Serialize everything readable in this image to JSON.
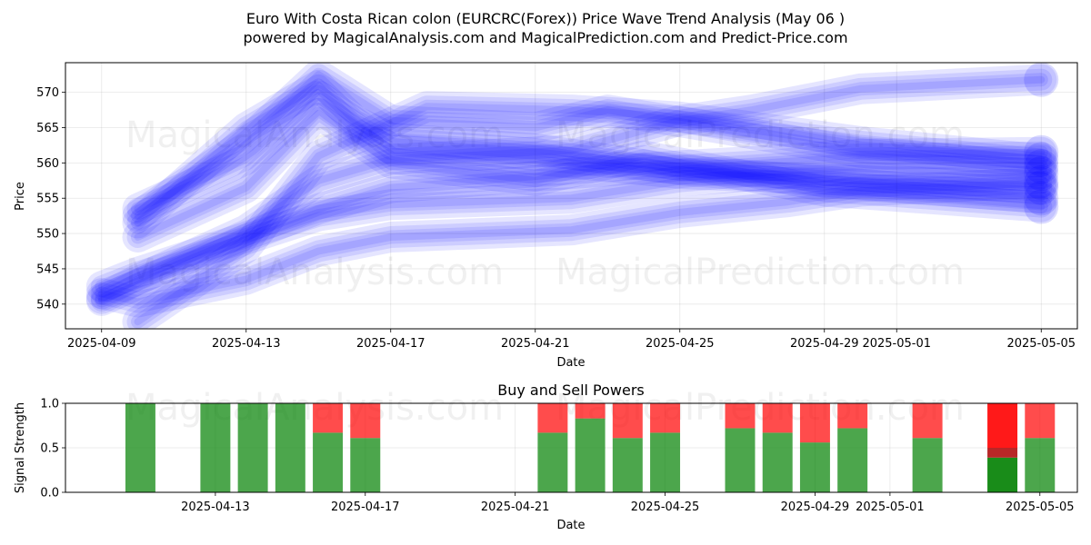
{
  "title_line1": "Euro With Costa Rican colon (EURCRC(Forex)) Price Wave Trend Analysis (May 06 )",
  "title_line2": "powered by MagicalAnalysis.com and MagicalPrediction.com and Predict-Price.com",
  "watermarks": [
    "MagicalAnalysis.com",
    "MagicalPrediction.com"
  ],
  "colors": {
    "wave": "#0000ff",
    "buy": "#008000",
    "sell": "#ff0000"
  },
  "chart_data": [
    {
      "type": "line",
      "title": "",
      "xlabel": "Date",
      "ylabel": "Price",
      "xlim": [
        "2025-04-08",
        "2025-05-06"
      ],
      "ylim": [
        536.5,
        574.2
      ],
      "x_ticks": [
        "2025-04-09",
        "2025-04-13",
        "2025-04-17",
        "2025-04-21",
        "2025-04-25",
        "2025-04-29",
        "2025-05-01",
        "2025-05-05"
      ],
      "y_ticks": [
        540,
        545,
        550,
        555,
        560,
        565,
        570
      ],
      "grid": true,
      "series": [
        {
          "x": [
            "2025-04-09",
            "2025-04-10",
            "2025-04-13",
            "2025-04-15",
            "2025-04-17",
            "2025-04-22",
            "2025-04-25",
            "2025-04-27",
            "2025-04-30",
            "2025-05-05"
          ],
          "values": [
            540.5,
            542.8,
            549.2,
            552.5,
            554.1,
            555.0,
            557.4,
            558.2,
            559.2,
            558.5
          ]
        },
        {
          "x": [
            "2025-04-09",
            "2025-04-10",
            "2025-04-13",
            "2025-04-15",
            "2025-04-17",
            "2025-04-22",
            "2025-04-25",
            "2025-04-28",
            "2025-04-30",
            "2025-05-05"
          ],
          "values": [
            541.5,
            540.3,
            543.5,
            547.5,
            549.5,
            550.5,
            553.0,
            554.5,
            556.0,
            557.2
          ]
        },
        {
          "x": [
            "2025-04-09",
            "2025-04-10",
            "2025-04-13",
            "2025-04-15",
            "2025-04-17",
            "2025-04-22",
            "2025-04-25",
            "2025-04-27",
            "2025-04-30",
            "2025-05-05"
          ],
          "values": [
            542.5,
            544.5,
            549.5,
            553.5,
            556.5,
            558.5,
            559.6,
            560.2,
            561.2,
            561.5
          ]
        },
        {
          "x": [
            "2025-04-09",
            "2025-04-10",
            "2025-04-13",
            "2025-04-15",
            "2025-04-17",
            "2025-04-22",
            "2025-04-25",
            "2025-04-27",
            "2025-04-30",
            "2025-05-05"
          ],
          "values": [
            540.8,
            543.5,
            550.5,
            557.5,
            560.5,
            561.8,
            566.0,
            567.5,
            570.5,
            571.8
          ]
        },
        {
          "x": [
            "2025-04-10",
            "2025-04-13",
            "2025-04-15",
            "2025-04-16",
            "2025-04-17",
            "2025-04-21",
            "2025-04-25",
            "2025-04-30",
            "2025-05-05"
          ],
          "values": [
            551.5,
            565.0,
            571.0,
            566.0,
            563.5,
            562.0,
            559.0,
            557.0,
            555.0
          ]
        },
        {
          "x": [
            "2025-04-10",
            "2025-04-13",
            "2025-04-15",
            "2025-04-17",
            "2025-04-21",
            "2025-04-23",
            "2025-04-26",
            "2025-04-30",
            "2025-05-05"
          ],
          "values": [
            552.5,
            563.0,
            572.5,
            566.0,
            565.0,
            567.5,
            565.0,
            561.5,
            559.5
          ]
        },
        {
          "x": [
            "2025-04-10",
            "2025-04-13",
            "2025-04-15",
            "2025-04-17",
            "2025-04-21",
            "2025-04-25",
            "2025-04-30",
            "2025-05-05"
          ],
          "values": [
            553.5,
            560.5,
            569.5,
            562.0,
            560.5,
            558.5,
            557.5,
            556.5
          ]
        },
        {
          "x": [
            "2025-04-10",
            "2025-04-13",
            "2025-04-15",
            "2025-04-17",
            "2025-04-21",
            "2025-04-24",
            "2025-04-29",
            "2025-05-05"
          ],
          "values": [
            549.5,
            556.5,
            567.0,
            560.0,
            557.5,
            561.0,
            556.0,
            553.8
          ]
        },
        {
          "x": [
            "2025-04-10",
            "2025-04-13",
            "2025-04-15",
            "2025-04-18",
            "2025-04-22",
            "2025-04-25",
            "2025-04-30",
            "2025-05-05"
          ],
          "values": [
            537.5,
            548.0,
            561.0,
            568.0,
            567.5,
            566.5,
            563.0,
            560.5
          ]
        }
      ]
    },
    {
      "type": "bar",
      "title": "Buy and Sell Powers",
      "xlabel": "Date",
      "ylabel": "Signal Strength",
      "xlim": [
        "2025-04-09",
        "2025-05-06"
      ],
      "ylim": [
        0,
        1
      ],
      "x_ticks": [
        "2025-04-13",
        "2025-04-17",
        "2025-04-21",
        "2025-04-25",
        "2025-04-29",
        "2025-05-01",
        "2025-05-05"
      ],
      "y_ticks": [
        "0.0",
        "0.5",
        "1.0"
      ],
      "bars": [
        {
          "date": "2025-04-11",
          "buy": 1.0
        },
        {
          "date": "2025-04-13",
          "buy": 1.0
        },
        {
          "date": "2025-04-14",
          "buy": 1.0
        },
        {
          "date": "2025-04-15",
          "buy": 1.0
        },
        {
          "date": "2025-04-16",
          "buy": 0.67
        },
        {
          "date": "2025-04-17",
          "buy": 0.61
        },
        {
          "date": "2025-04-22",
          "buy": 0.67
        },
        {
          "date": "2025-04-23",
          "buy": 0.83
        },
        {
          "date": "2025-04-24",
          "buy": 0.61
        },
        {
          "date": "2025-04-25",
          "buy": 0.67
        },
        {
          "date": "2025-04-27",
          "buy": 0.72
        },
        {
          "date": "2025-04-28",
          "buy": 0.67
        },
        {
          "date": "2025-04-29",
          "buy": 0.56
        },
        {
          "date": "2025-04-30",
          "buy": 0.72
        },
        {
          "date": "2025-05-02",
          "buy": 0.61
        },
        {
          "date": "2025-05-04",
          "buy": 0.39,
          "strong": true,
          "mid": 0.5
        },
        {
          "date": "2025-05-05",
          "buy": 0.61
        }
      ]
    }
  ]
}
